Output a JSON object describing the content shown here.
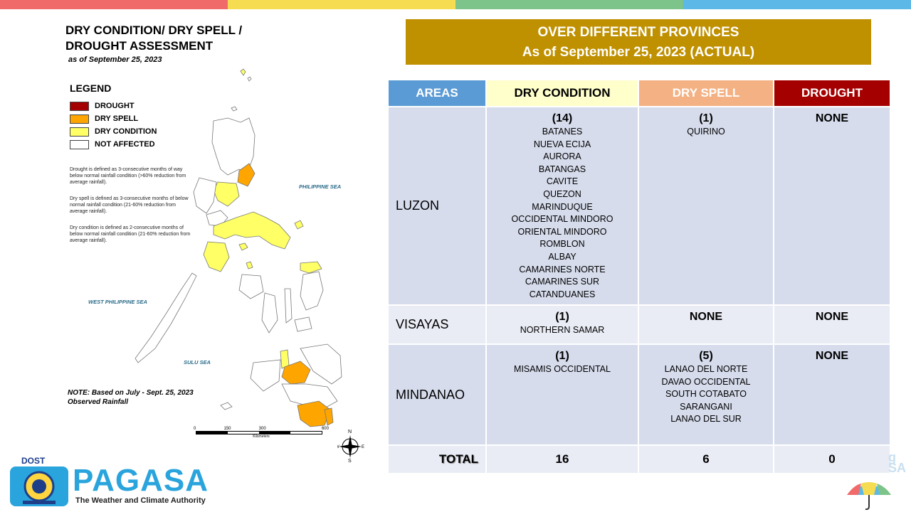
{
  "stripe_colors": [
    "#f06a6a",
    "#f5dc50",
    "#7cc48a",
    "#5cb8e6"
  ],
  "map": {
    "title_line1": "DRY CONDITION/ DRY SPELL /",
    "title_line2": "DROUGHT ASSESSMENT",
    "date": "as of September 25, 2023",
    "legend_title": "LEGEND",
    "legend": [
      {
        "label": "DROUGHT",
        "color": "#a50000"
      },
      {
        "label": "DRY SPELL",
        "color": "#ffa500"
      },
      {
        "label": "DRY CONDITION",
        "color": "#ffff66"
      },
      {
        "label": "NOT AFFECTED",
        "color": "#ffffff"
      }
    ],
    "definitions": [
      "Drought is defined as 3-consecutive months of way below normal rainfall condition (>60% reduction from average rainfall).",
      "Dry spell is defined as 3-consecutive months of below normal rainfall condition (21-60% reduction from average rainfall).",
      "Dry condition is defined as 2-consecutive months of below normal rainfall condition (21-60% reduction from average rainfall)."
    ],
    "sea_labels": {
      "philippine_sea": "PHILIPPINE SEA",
      "west_philippine_sea": "WEST PHILIPPINE SEA",
      "sulu_sea": "SULU SEA"
    },
    "note_line1": "NOTE: Based on July - Sept. 25, 2023",
    "note_line2": "Observed Rainfall",
    "scale_ticks": [
      "0",
      "150",
      "300",
      "",
      "600"
    ],
    "scale_unit": "Kilometers",
    "compass": {
      "n": "N",
      "s": "S",
      "e": "E",
      "w": "W"
    }
  },
  "logo": {
    "dost": "DOST",
    "name": "PAGASA",
    "tagline": "The Weather and Climate Authority"
  },
  "header": {
    "line1": "OVER DIFFERENT PROVINCES",
    "line2": "As of September 25, 2023 (ACTUAL)"
  },
  "table": {
    "headers": {
      "areas": "AREAS",
      "dry_condition": "DRY CONDITION",
      "dry_spell": "DRY SPELL",
      "drought": "DROUGHT"
    },
    "luzon": {
      "area": "LUZON",
      "dry_condition_count": "(14)",
      "dry_condition": [
        "BATANES",
        "NUEVA ECIJA",
        "AURORA",
        "BATANGAS",
        "CAVITE",
        "QUEZON",
        "MARINDUQUE",
        "OCCIDENTAL MINDORO",
        "ORIENTAL MINDORO",
        "ROMBLON",
        "ALBAY",
        "CAMARINES NORTE",
        "CAMARINES SUR",
        "CATANDUANES"
      ],
      "dry_spell_count": "(1)",
      "dry_spell": [
        "QUIRINO"
      ],
      "drought": "NONE"
    },
    "visayas": {
      "area": "VISAYAS",
      "dry_condition_count": "(1)",
      "dry_condition": [
        "NORTHERN SAMAR"
      ],
      "dry_spell": "NONE",
      "drought": "NONE"
    },
    "mindanao": {
      "area": "MINDANAO",
      "dry_condition_count": "(1)",
      "dry_condition": [
        "MISAMIS OCCIDENTAL"
      ],
      "dry_spell_count": "(5)",
      "dry_spell": [
        "LANAO DEL NORTE",
        "DAVAO OCCIDENTAL",
        "SOUTH COTABATO",
        "SARANGANI",
        "LANAO DEL SUR"
      ],
      "drought": "NONE"
    },
    "total": {
      "label": "TOTAL",
      "dry_condition": "16",
      "dry_spell": "6",
      "drought": "0"
    }
  }
}
